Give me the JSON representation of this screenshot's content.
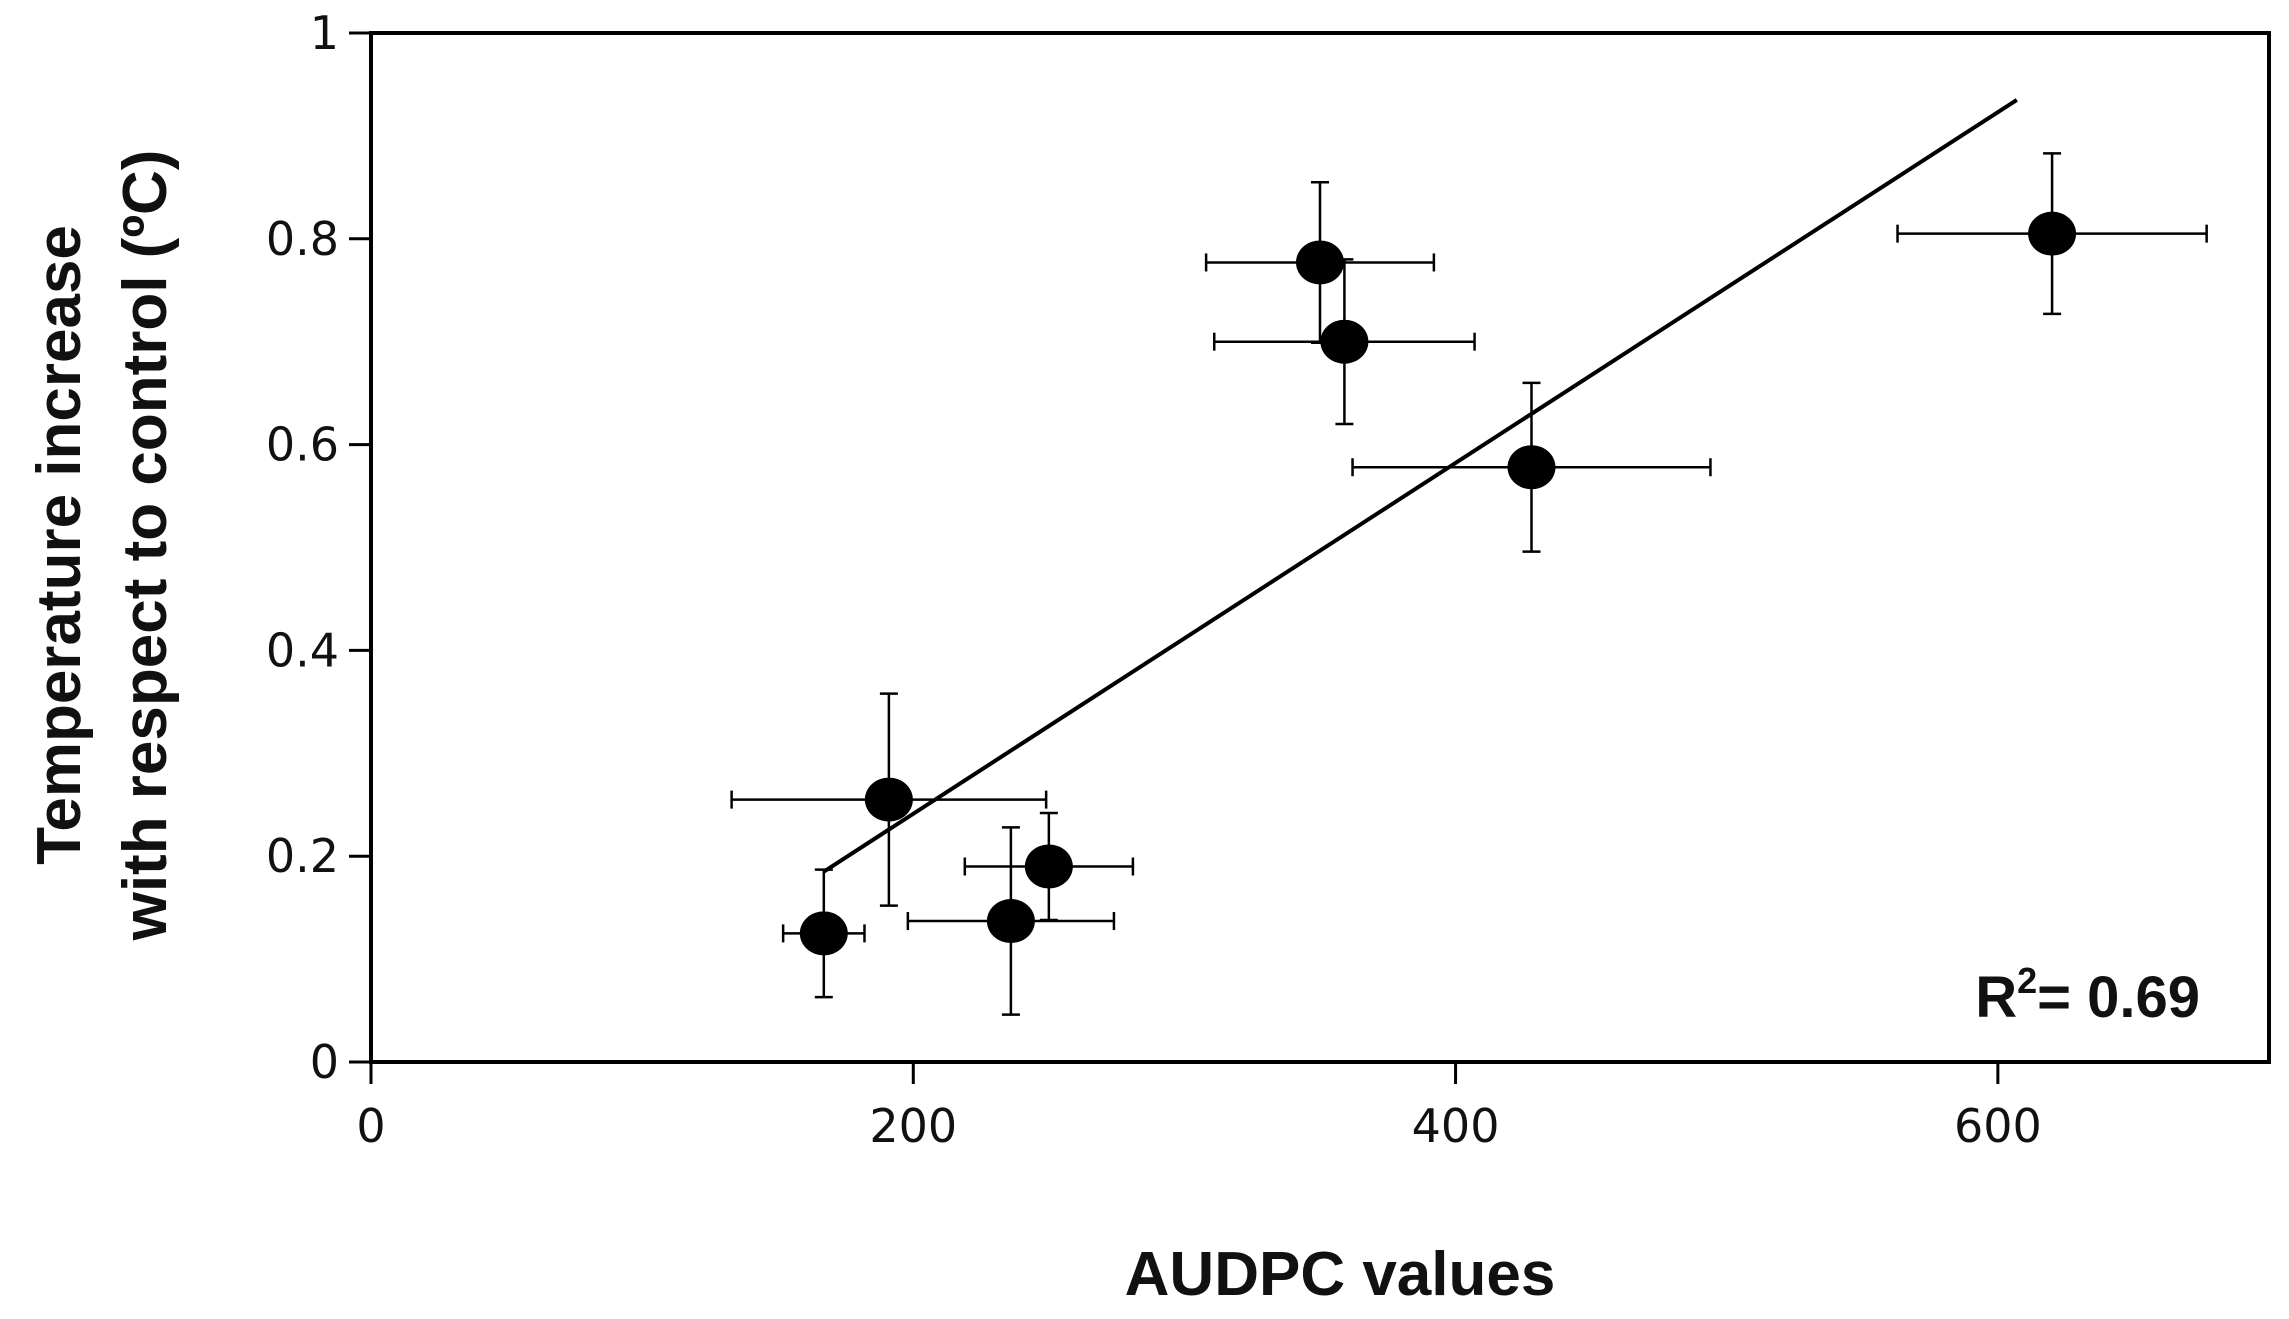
{
  "chart_data": {
    "type": "scatter",
    "xlabel": "AUDPC values",
    "ylabel_lines": [
      "Temperature increase",
      "with respect to control (ºC)"
    ],
    "xlim": [
      0,
      700
    ],
    "ylim": [
      0,
      1
    ],
    "x_ticks": [
      0,
      200,
      400,
      600
    ],
    "x_tick_labels": [
      "0",
      "200",
      "400",
      "600"
    ],
    "y_ticks": [
      0,
      0.2,
      0.4,
      0.6,
      0.8,
      1
    ],
    "y_tick_labels": [
      "0",
      "0.2",
      "0.4",
      "0.6",
      "0.8",
      "1"
    ],
    "grid": false,
    "points": [
      {
        "x": 167,
        "y": 0.125,
        "xerr": 15,
        "yerr": 0.062
      },
      {
        "x": 191,
        "y": 0.255,
        "xerr": 58,
        "yerr": 0.103
      },
      {
        "x": 236,
        "y": 0.137,
        "xerr": 38,
        "yerr": 0.091
      },
      {
        "x": 250,
        "y": 0.19,
        "xerr": 31,
        "yerr": 0.052
      },
      {
        "x": 350,
        "y": 0.777,
        "xerr": 42,
        "yerr": 0.078
      },
      {
        "x": 359,
        "y": 0.7,
        "xerr": 48,
        "yerr": 0.08
      },
      {
        "x": 428,
        "y": 0.578,
        "xerr": 66,
        "yerr": 0.082
      },
      {
        "x": 620,
        "y": 0.805,
        "xerr": 57,
        "yerr": 0.078
      }
    ],
    "trendline": {
      "x": [
        167,
        607
      ],
      "y": [
        0.185,
        0.935
      ]
    },
    "r2_label": "R",
    "r2_sup": "2",
    "r2_value": "= 0.69"
  }
}
